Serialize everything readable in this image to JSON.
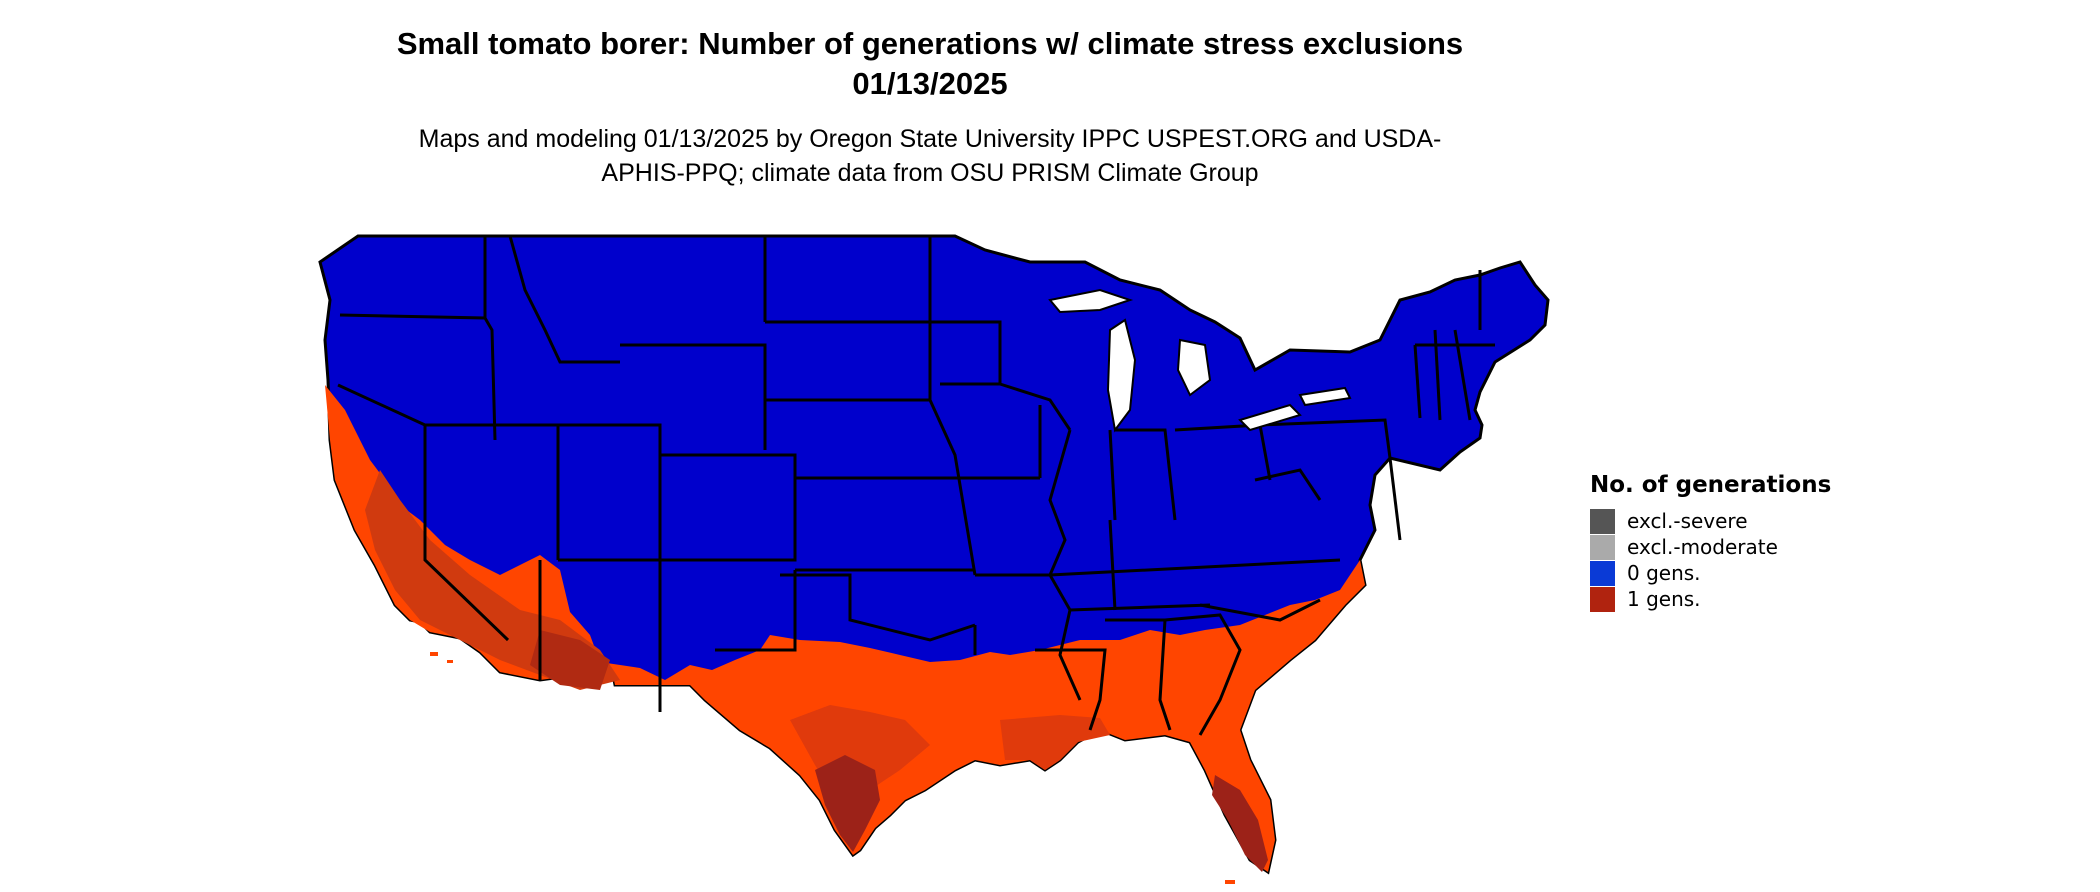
{
  "title": "Small tomato borer: Number of generations w/ climate stress exclusions 01/13/2025",
  "subtitle": "Maps and modeling 01/13/2025 by Oregon State University IPPC USPEST.ORG and USDA-APHIS-PPQ; climate data from OSU PRISM Climate Group",
  "legend": {
    "title": "No. of generations",
    "items": [
      {
        "label": "excl.-severe",
        "color": "#555555"
      },
      {
        "label": "excl.-moderate",
        "color": "#aaaaaa"
      },
      {
        "label": "0 gens.",
        "color": "#0a3ad6"
      },
      {
        "label": "1 gens.",
        "color": "#b0230f"
      }
    ]
  },
  "map_colors": {
    "zero_generations_fill": "#0000cc",
    "warm_zone_fill": "#ff4500",
    "warmer_zone_fill": "#e03a0c",
    "hottest_zone_fill": "#9c2218",
    "state_borders": "#000000"
  }
}
